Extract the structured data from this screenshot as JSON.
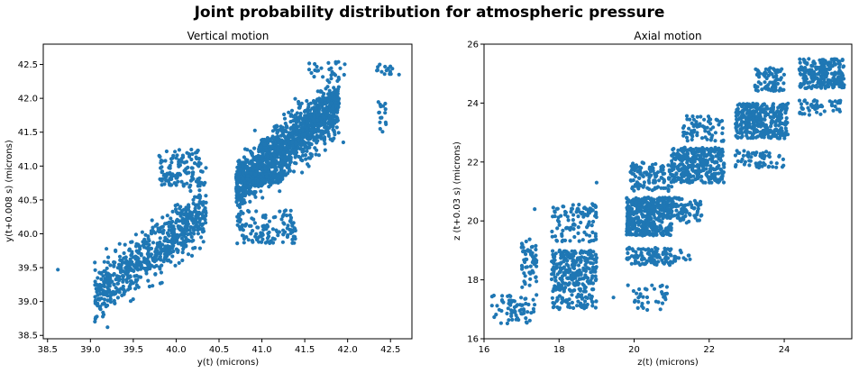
{
  "figure": {
    "title": "Joint probability distribution for atmospheric pressure"
  },
  "chart_data": [
    {
      "type": "scatter",
      "title": "Vertical motion",
      "xlabel": "y(t) (microns)",
      "ylabel": "y(t+0.008 s) (microns)",
      "xlim": [
        38.45,
        42.75
      ],
      "ylim": [
        38.45,
        42.8
      ],
      "xticks": [
        "38.5",
        "39.0",
        "39.5",
        "40.0",
        "40.5",
        "41.0",
        "41.5",
        "42.0",
        "42.5"
      ],
      "yticks": [
        "38.5",
        "39.0",
        "39.5",
        "40.0",
        "40.5",
        "41.0",
        "41.5",
        "42.0",
        "42.5"
      ],
      "color": "#1f77b4",
      "grid": false,
      "clusters": [
        {
          "kind": "band",
          "x": [
            39.05,
            40.35
          ],
          "width": 0.55,
          "n": 700
        },
        {
          "kind": "band",
          "x": [
            40.7,
            41.9
          ],
          "width": 0.55,
          "n": 1400
        },
        {
          "kind": "rect",
          "x": [
            40.7,
            41.25
          ],
          "y": [
            40.75,
            40.9
          ],
          "n": 200
        },
        {
          "kind": "rect",
          "x": [
            39.8,
            40.35
          ],
          "y": [
            40.7,
            41.25
          ],
          "n": 120
        },
        {
          "kind": "rect",
          "x": [
            40.7,
            41.4
          ],
          "y": [
            39.85,
            40.35
          ],
          "n": 120
        },
        {
          "kind": "rect",
          "x": [
            41.55,
            42.0
          ],
          "y": [
            42.3,
            42.55
          ],
          "n": 25
        },
        {
          "kind": "rect",
          "x": [
            42.3,
            42.55
          ],
          "y": [
            42.35,
            42.5
          ],
          "n": 15
        },
        {
          "kind": "rect",
          "x": [
            42.35,
            42.45
          ],
          "y": [
            41.5,
            42.0
          ],
          "n": 15
        },
        {
          "kind": "rect",
          "x": [
            39.8,
            39.95
          ],
          "y": [
            40.7,
            40.8
          ],
          "n": 8
        }
      ],
      "points": [
        [
          38.62,
          39.47
        ],
        [
          39.2,
          38.62
        ],
        [
          42.6,
          42.35
        ],
        [
          41.95,
          41.35
        ],
        [
          42.38,
          41.55
        ]
      ]
    },
    {
      "type": "scatter",
      "title": "Axial motion",
      "xlabel": "z(t) (microns)",
      "ylabel": "z (t+0.03 s) (microns)",
      "xlim": [
        16,
        25.8
      ],
      "ylim": [
        16,
        26
      ],
      "xticks": [
        "16",
        "18",
        "20",
        "22",
        "24"
      ],
      "yticks": [
        "16",
        "18",
        "20",
        "22",
        "24",
        "26"
      ],
      "color": "#1f77b4",
      "grid": false,
      "clusters": [
        {
          "kind": "rect",
          "x": [
            16.2,
            17.4
          ],
          "y": [
            16.5,
            17.5
          ],
          "n": 70
        },
        {
          "kind": "rect",
          "x": [
            17.0,
            17.4
          ],
          "y": [
            17.7,
            19.4
          ],
          "n": 60
        },
        {
          "kind": "rect",
          "x": [
            17.8,
            19.0
          ],
          "y": [
            17.6,
            19.0
          ],
          "n": 260
        },
        {
          "kind": "rect",
          "x": [
            17.8,
            19.0
          ],
          "y": [
            17.0,
            17.5
          ],
          "n": 60
        },
        {
          "kind": "rect",
          "x": [
            17.8,
            19.0
          ],
          "y": [
            19.3,
            20.5
          ],
          "n": 80
        },
        {
          "kind": "rect",
          "x": [
            18.3,
            19.0
          ],
          "y": [
            20.2,
            20.6
          ],
          "n": 25
        },
        {
          "kind": "rect",
          "x": [
            19.8,
            21.0
          ],
          "y": [
            19.5,
            20.8
          ],
          "n": 420
        },
        {
          "kind": "rect",
          "x": [
            19.8,
            21.0
          ],
          "y": [
            18.5,
            19.1
          ],
          "n": 110
        },
        {
          "kind": "rect",
          "x": [
            19.8,
            20.9
          ],
          "y": [
            17.0,
            17.9
          ],
          "n": 35
        },
        {
          "kind": "rect",
          "x": [
            19.9,
            21.0
          ],
          "y": [
            21.0,
            22.0
          ],
          "n": 120
        },
        {
          "kind": "rect",
          "x": [
            21.0,
            21.8
          ],
          "y": [
            19.9,
            20.8
          ],
          "n": 80
        },
        {
          "kind": "rect",
          "x": [
            21.0,
            21.5
          ],
          "y": [
            18.5,
            19.0
          ],
          "n": 15
        },
        {
          "kind": "rect",
          "x": [
            21.0,
            22.4
          ],
          "y": [
            21.3,
            22.5
          ],
          "n": 320
        },
        {
          "kind": "rect",
          "x": [
            21.3,
            22.4
          ],
          "y": [
            22.7,
            23.6
          ],
          "n": 70
        },
        {
          "kind": "rect",
          "x": [
            22.7,
            24.1
          ],
          "y": [
            22.8,
            24.0
          ],
          "n": 340
        },
        {
          "kind": "rect",
          "x": [
            22.7,
            24.0
          ],
          "y": [
            21.8,
            22.4
          ],
          "n": 60
        },
        {
          "kind": "rect",
          "x": [
            23.2,
            24.0
          ],
          "y": [
            24.4,
            25.2
          ],
          "n": 80
        },
        {
          "kind": "rect",
          "x": [
            24.4,
            25.6
          ],
          "y": [
            24.5,
            25.5
          ],
          "n": 230
        },
        {
          "kind": "rect",
          "x": [
            24.4,
            25.5
          ],
          "y": [
            23.6,
            24.1
          ],
          "n": 50
        }
      ],
      "points": [
        [
          17.35,
          20.4
        ],
        [
          19.0,
          21.3
        ],
        [
          20.7,
          17.0
        ],
        [
          20.35,
          16.98
        ],
        [
          19.45,
          17.4
        ]
      ]
    }
  ]
}
